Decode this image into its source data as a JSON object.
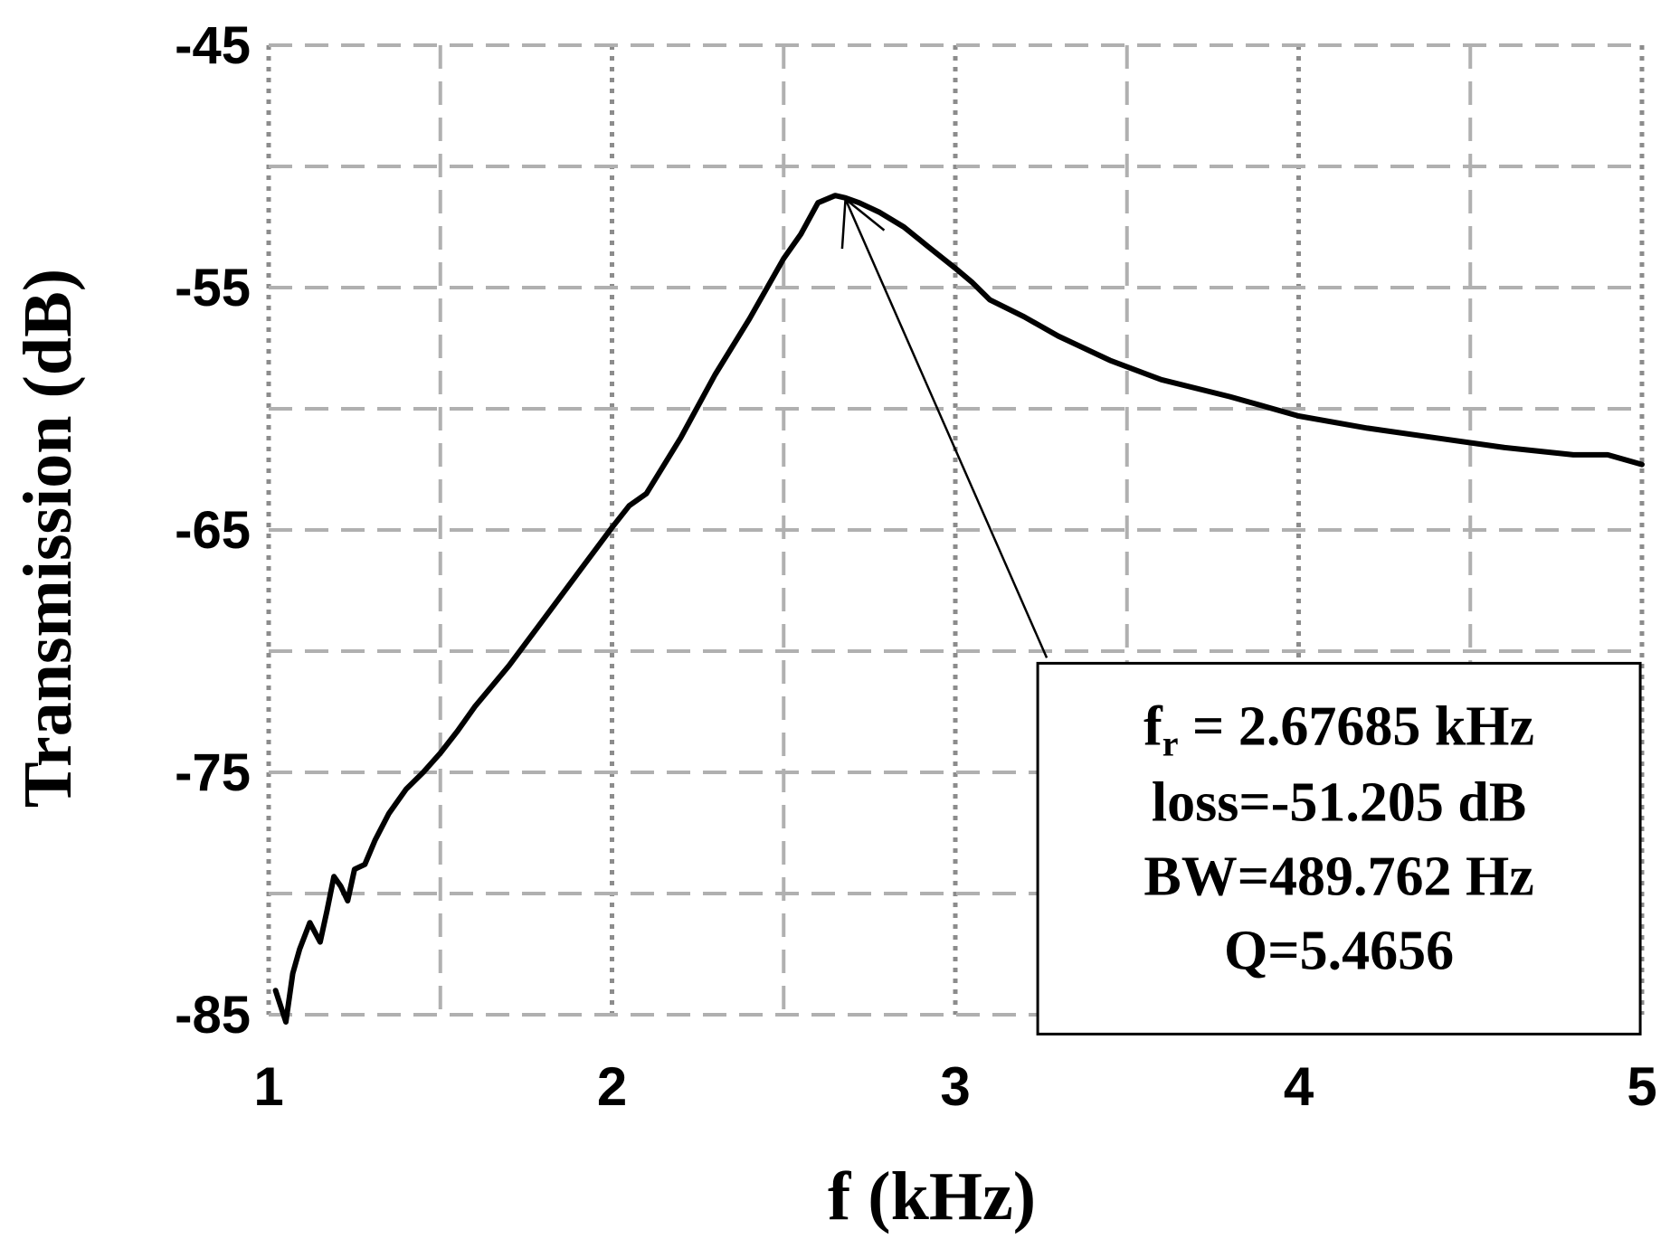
{
  "chart_data": {
    "type": "line",
    "title": "",
    "xlabel": "f (kHz)",
    "ylabel": "Transmission (dB)",
    "xlim": [
      1,
      5
    ],
    "ylim": [
      -85,
      -45
    ],
    "x_ticks": [
      1,
      2,
      3,
      4,
      5
    ],
    "x_tick_labels": [
      "1",
      "2",
      "3",
      "4",
      "5"
    ],
    "y_ticks": [
      -45,
      -55,
      -65,
      -75,
      -85
    ],
    "y_tick_labels": [
      "-45",
      "-55",
      "-65",
      "-75",
      "-85"
    ],
    "grid": true,
    "legend": "none",
    "series": [
      {
        "color": "#000000",
        "x": [
          1.02,
          1.05,
          1.07,
          1.09,
          1.12,
          1.15,
          1.17,
          1.19,
          1.21,
          1.23,
          1.25,
          1.28,
          1.31,
          1.35,
          1.4,
          1.45,
          1.5,
          1.55,
          1.6,
          1.7,
          1.8,
          1.9,
          2.0,
          2.05,
          2.1,
          2.2,
          2.3,
          2.4,
          2.5,
          2.55,
          2.6,
          2.65,
          2.68,
          2.72,
          2.78,
          2.85,
          2.92,
          3.0,
          3.05,
          3.1,
          3.2,
          3.3,
          3.45,
          3.6,
          3.8,
          4.0,
          4.2,
          4.4,
          4.6,
          4.8,
          4.9,
          5.0
        ],
        "y": [
          -84.0,
          -85.3,
          -83.3,
          -82.3,
          -81.2,
          -82.0,
          -80.7,
          -79.3,
          -79.7,
          -80.3,
          -79.0,
          -78.8,
          -77.8,
          -76.7,
          -75.7,
          -75.0,
          -74.2,
          -73.3,
          -72.3,
          -70.6,
          -68.7,
          -66.8,
          -64.9,
          -64.0,
          -63.5,
          -61.2,
          -58.6,
          -56.3,
          -53.8,
          -52.8,
          -51.5,
          -51.2,
          -51.3,
          -51.5,
          -51.9,
          -52.5,
          -53.3,
          -54.2,
          -54.8,
          -55.5,
          -56.2,
          -57.0,
          -58.0,
          -58.8,
          -59.5,
          -60.3,
          -60.8,
          -61.2,
          -61.6,
          -61.9,
          -61.9,
          -62.3
        ]
      }
    ],
    "annotation": {
      "lines": [
        {
          "main": "f",
          "sub": "r",
          "rest": " = 2.67685 kHz"
        },
        {
          "main": "loss=-51.205 dB"
        },
        {
          "main": "BW=489.762 Hz"
        },
        {
          "main": "Q=5.4656"
        }
      ],
      "arrow_target": {
        "x": 2.68,
        "y": -51.2
      },
      "box_data_anchor": {
        "x": 3.24,
        "y": -70.5
      }
    }
  }
}
